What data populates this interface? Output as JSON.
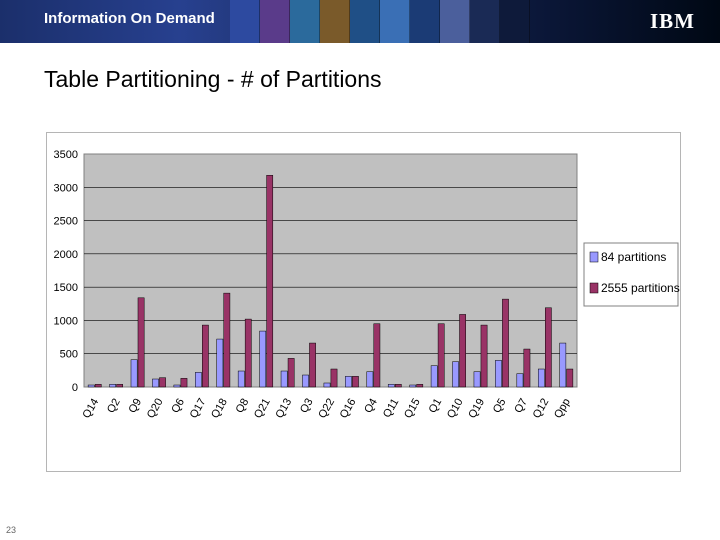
{
  "header": {
    "banner_title": "Information On Demand",
    "banner_subtitle": "",
    "logo_text": "IBM"
  },
  "slide": {
    "title": "Table Partitioning - # of Partitions",
    "page_number": "23"
  },
  "chart_data": {
    "type": "bar",
    "title": "",
    "xlabel": "",
    "ylabel": "",
    "ylim": [
      0,
      3500
    ],
    "yticks": [
      0,
      500,
      1000,
      1500,
      2000,
      2500,
      3000,
      3500
    ],
    "grid": true,
    "legend_position": "right",
    "categories": [
      "Q14",
      "Q2",
      "Q9",
      "Q20",
      "Q6",
      "Q17",
      "Q18",
      "Q8",
      "Q21",
      "Q13",
      "Q3",
      "Q22",
      "Q16",
      "Q4",
      "Q11",
      "Q15",
      "Q1",
      "Q10",
      "Q19",
      "Q5",
      "Q7",
      "Q12",
      "Qpp"
    ],
    "series": [
      {
        "name": "84 partitions",
        "color": "#9999ff",
        "values": [
          30,
          40,
          410,
          120,
          30,
          220,
          720,
          240,
          840,
          240,
          180,
          60,
          160,
          230,
          40,
          30,
          320,
          380,
          230,
          400,
          200,
          270,
          660
        ]
      },
      {
        "name": "2555 partitions",
        "color": "#993366",
        "values": [
          40,
          40,
          1340,
          140,
          130,
          930,
          1410,
          1020,
          3180,
          430,
          660,
          270,
          160,
          950,
          40,
          40,
          950,
          1090,
          930,
          1320,
          570,
          1190,
          270
        ]
      }
    ],
    "plot_bg": "#c0c0c0",
    "border_color": "#808080"
  }
}
